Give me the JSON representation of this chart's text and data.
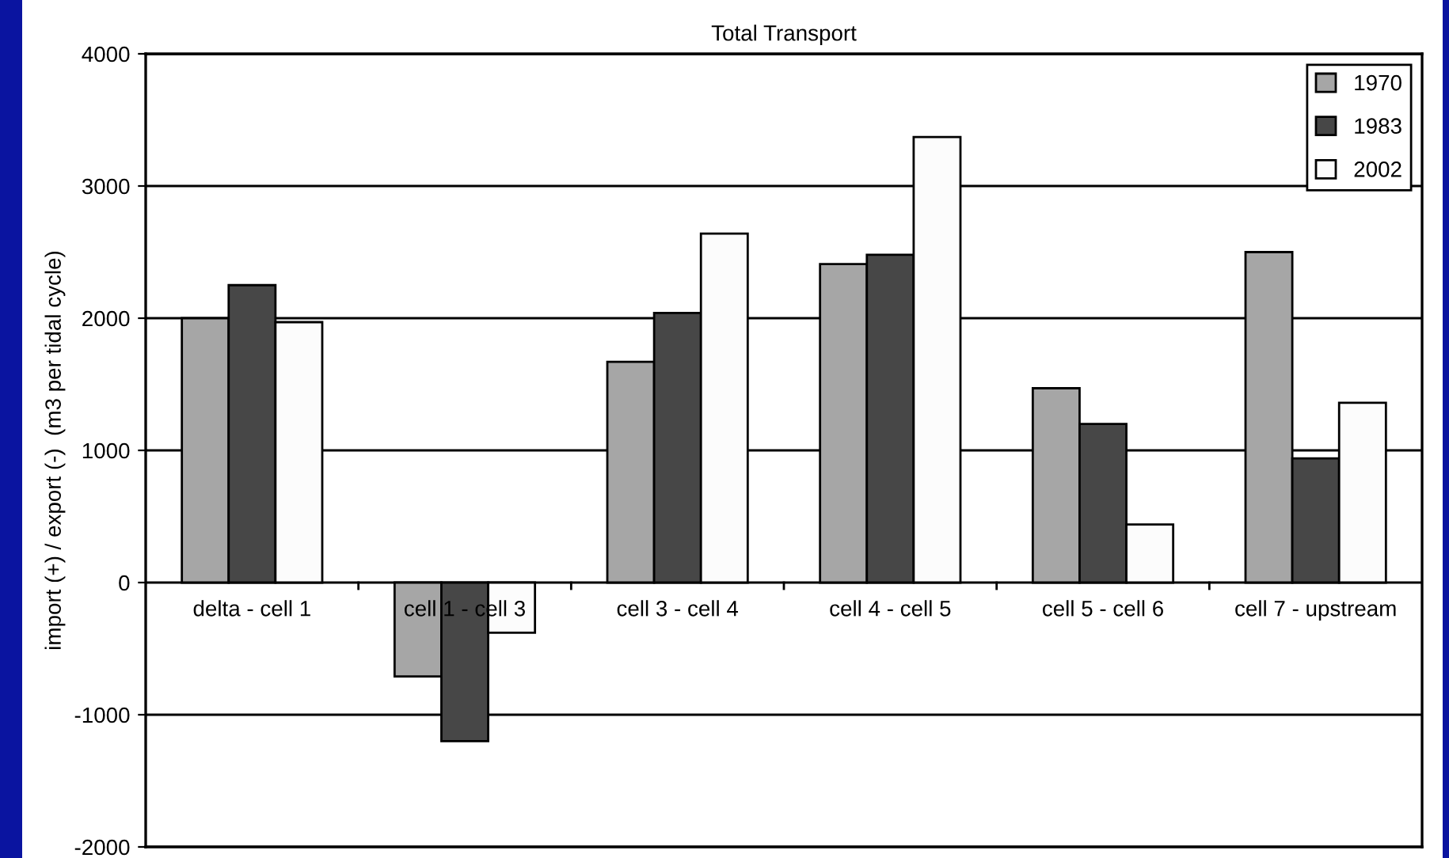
{
  "chart_data": {
    "type": "bar",
    "title": "Total Transport",
    "ylabel": "import (+) / export (-)  (m3 per tidal cycle)",
    "categories": [
      "delta - cell 1",
      "cell 1 - cell 3",
      "cell 3 - cell 4",
      "cell 4 - cell 5",
      "cell 5 - cell 6",
      "cell 7 - upstream"
    ],
    "series": [
      {
        "name": "1970",
        "color": "#a6a6a6",
        "values": [
          2000,
          -710,
          1670,
          2410,
          1470,
          2500
        ]
      },
      {
        "name": "1983",
        "color": "#474747",
        "values": [
          2250,
          -1200,
          2040,
          2480,
          1200,
          940
        ]
      },
      {
        "name": "2002",
        "color": "#fcfcfc",
        "values": [
          1970,
          -380,
          2640,
          3370,
          440,
          1360
        ]
      }
    ],
    "ylim": [
      -2000,
      4000
    ],
    "yticks": [
      -2000,
      -1000,
      0,
      1000,
      2000,
      3000,
      4000
    ],
    "grid": "y",
    "legend": "top right"
  }
}
